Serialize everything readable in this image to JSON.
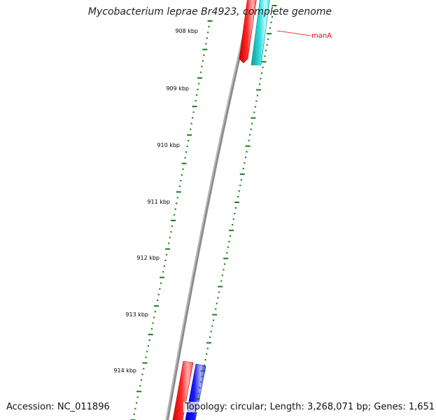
{
  "title": "Mycobacterium leprae Br4923, complete genome",
  "footer": {
    "accession": "Accession: NC_011896",
    "summary": "Topology: circular; Length: 3,268,071 bp; Genes: 1,651"
  },
  "kbp_labels": [
    "908 kbp",
    "909 kbp",
    "910 kbp",
    "911 kbp",
    "912 kbp",
    "913 kbp",
    "914 kbp"
  ],
  "gene_label": "manA",
  "colors": {
    "backbone": "#808080",
    "tick": "#1a7a1a",
    "cds_forward": "#ff0000",
    "cds_feature": "#22cccc",
    "cds_reverse": "#0000ff",
    "gene_label": "#e00000"
  }
}
